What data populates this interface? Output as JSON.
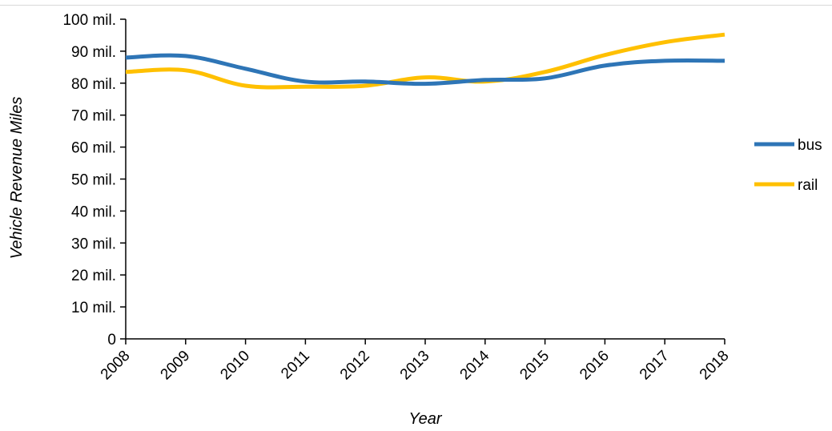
{
  "chart_data": {
    "type": "line",
    "title": "",
    "xlabel": "Year",
    "ylabel": "Vehicle Revenue Miles",
    "x": [
      "2008",
      "2009",
      "2010",
      "2011",
      "2012",
      "2013",
      "2014",
      "2015",
      "2016",
      "2017",
      "2018"
    ],
    "y_ticks": [
      "0",
      "10 mil.",
      "20 mil.",
      "30 mil.",
      "40 mil.",
      "50 mil.",
      "60 mil.",
      "70 mil.",
      "80 mil.",
      "90 mil.",
      "100 mil."
    ],
    "y_tick_values": [
      0,
      10000000,
      20000000,
      30000000,
      40000000,
      50000000,
      60000000,
      70000000,
      80000000,
      90000000,
      100000000
    ],
    "ylim": [
      0,
      100000000
    ],
    "grid": false,
    "legend_position": "right",
    "series": [
      {
        "name": "bus",
        "color": "#2E75B6",
        "values": [
          88000000,
          88500000,
          84500000,
          80500000,
          80500000,
          79800000,
          81000000,
          81500000,
          85500000,
          87000000,
          87000000
        ]
      },
      {
        "name": "rail",
        "color": "#FFC000",
        "values": [
          83500000,
          84000000,
          79200000,
          78900000,
          79200000,
          81800000,
          80500000,
          83500000,
          88800000,
          92800000,
          95200000
        ]
      }
    ]
  }
}
